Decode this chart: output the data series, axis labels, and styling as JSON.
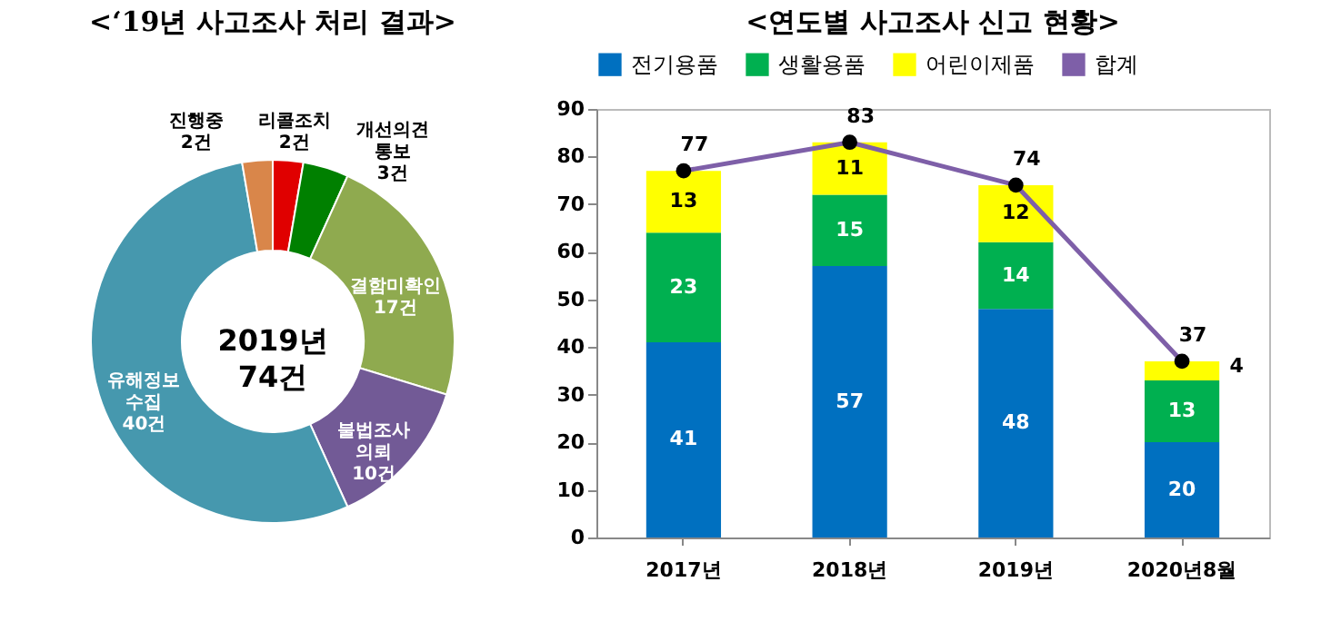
{
  "chart_data": [
    {
      "type": "donut",
      "title": "<‘19년 사고조사 처리 결과>",
      "categories": [
        "리콜조치",
        "개선의견 통보",
        "결함미확인",
        "불법조사 의뢰",
        "유해정보 수집",
        "진행중"
      ],
      "values": [
        2,
        3,
        17,
        10,
        40,
        2
      ],
      "value_labels": [
        "2건",
        "3건",
        "17건",
        "10건",
        "40건",
        "2건"
      ],
      "colors": [
        "#e00000",
        "#008000",
        "#8faa4f",
        "#725a96",
        "#4698ae",
        "#d9864a"
      ],
      "annotations": [
        "2019년 74건"
      ]
    },
    {
      "type": "bar",
      "title": "<연도별 사고조사 신고 현황>",
      "stacked": true,
      "categories": [
        "2017년",
        "2018년",
        "2019년",
        "2020년8월"
      ],
      "series": [
        {
          "name": "전기용품",
          "color": "#0070c0",
          "values": [
            41,
            57,
            48,
            20
          ]
        },
        {
          "name": "생활용품",
          "color": "#00b050",
          "values": [
            23,
            15,
            14,
            13
          ]
        },
        {
          "name": "어린이제품",
          "color": "#ffff00",
          "values": [
            13,
            11,
            12,
            4
          ]
        },
        {
          "name": "합계",
          "type": "line",
          "color": "#7e5fa8",
          "marker": "circle",
          "values": [
            77,
            83,
            74,
            37
          ]
        }
      ],
      "ylim": [
        0,
        90
      ],
      "yticks": [
        0,
        10,
        20,
        30,
        40,
        50,
        60,
        70,
        80,
        90
      ],
      "data_labels": true,
      "legend": "top"
    }
  ]
}
